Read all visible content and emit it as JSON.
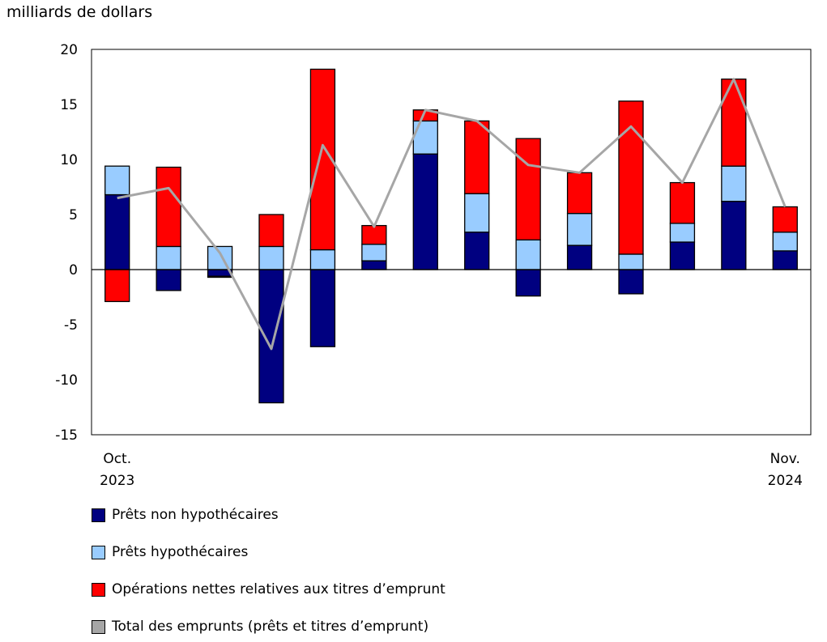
{
  "chart_data": {
    "type": "bar",
    "stacked": true,
    "title": "",
    "ylabel": "milliards de dollars",
    "xlabel": "",
    "ylim": [
      -15,
      20
    ],
    "yticks": [
      20,
      15,
      10,
      5,
      0,
      -5,
      -10,
      -15
    ],
    "categories": [
      "Oct.\n2023",
      "",
      "",
      "",
      "",
      "",
      "",
      "",
      "",
      "",
      "",
      "",
      "",
      "Nov.\n2024"
    ],
    "x_tick_labels": [
      {
        "index": 0,
        "line1": "Oct.",
        "line2": "2023"
      },
      {
        "index": 13,
        "line1": "Nov.",
        "line2": "2024"
      }
    ],
    "grid": false,
    "legend_position": "bottom",
    "series": [
      {
        "name": "Prêts non hypothécaires",
        "type": "bar",
        "color": "#000080",
        "values": [
          6.8,
          -1.9,
          -0.6,
          -12.1,
          -7.0,
          0.8,
          10.5,
          3.4,
          -2.4,
          2.2,
          -2.2,
          2.5,
          6.2,
          1.7
        ]
      },
      {
        "name": "Prêts hypothécaires",
        "type": "bar",
        "color": "#99ccff",
        "values": [
          2.6,
          2.1,
          2.1,
          2.1,
          1.8,
          1.5,
          3.0,
          3.5,
          2.7,
          2.9,
          1.4,
          1.7,
          3.2,
          1.7
        ]
      },
      {
        "name": "Opérations nettes relatives aux titres d’emprunt",
        "type": "bar",
        "color": "#ff0000",
        "values": [
          -2.9,
          7.2,
          -0.1,
          2.9,
          16.4,
          1.7,
          1.0,
          6.6,
          9.2,
          3.7,
          13.9,
          3.7,
          7.9,
          2.3
        ]
      },
      {
        "name": "Total des emprunts (prêts et titres d’emprunt)",
        "type": "line",
        "color": "#a6a6a6",
        "values": [
          6.5,
          7.4,
          1.5,
          -7.2,
          11.3,
          3.9,
          14.5,
          13.5,
          9.5,
          8.8,
          13.0,
          7.9,
          17.3,
          5.7
        ]
      }
    ]
  }
}
